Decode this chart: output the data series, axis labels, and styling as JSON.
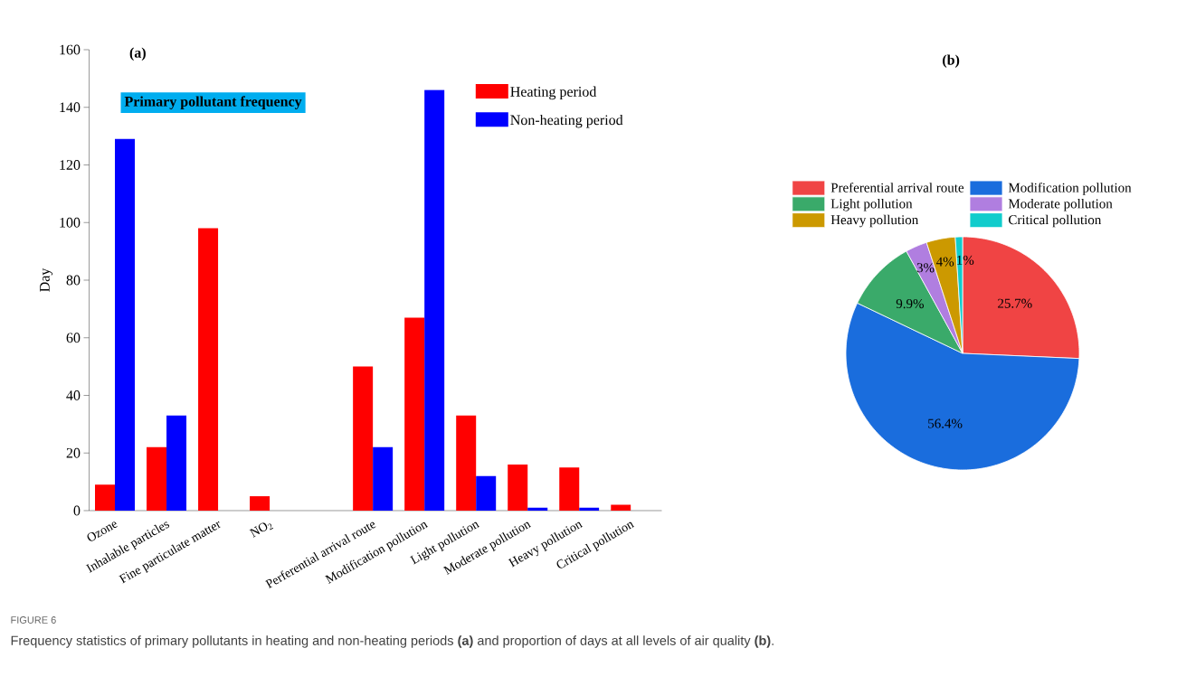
{
  "chart_data": [
    {
      "type": "bar",
      "title": "(a)",
      "ylabel": "Day",
      "categories": [
        "Ozone",
        "Inhalable particles",
        "Fine particulate matter",
        "NO$_{2}$",
        null,
        "Perferential arrival route",
        "Modification pollution",
        "Light pollution",
        "Moderate pollution",
        "Heavy pollution",
        "Critical pollution"
      ],
      "series": [
        {
          "name": "Heating period",
          "color": "#ff0000",
          "values": [
            9,
            22,
            98,
            5,
            null,
            50,
            67,
            33,
            16,
            15,
            2
          ]
        },
        {
          "name": "Non-heating period",
          "color": "#0000ff",
          "values": [
            129,
            33,
            null,
            null,
            null,
            22,
            146,
            12,
            1,
            1,
            null
          ]
        }
      ],
      "ylim": [
        0,
        160
      ],
      "yticks": [
        0,
        20,
        40,
        60,
        80,
        100,
        120,
        140,
        160
      ],
      "legend": "top right",
      "grid": false,
      "annotations": [
        "Primary pollutant frequency",
        "FIGURE 6",
        "Frequency statistics of primary pollutants in heating and non-heating periods **(a)** and proportion of days at all levels of air quality **(b)**."
      ]
    },
    {
      "type": "pie",
      "title": "(b)",
      "categories": [
        "Preferential arrival route",
        "Modification  pollution",
        "Light pollution",
        "Moderate pollution",
        "Heavy pollution",
        "Critical pollution"
      ],
      "values": [
        25.7,
        56.4,
        9.9,
        3,
        4,
        1
      ],
      "colors": [
        "#f04444",
        "#1a6ddd",
        "#3aaa6a",
        "#b07ee0",
        "#cc9900",
        "#11cccc"
      ],
      "value_labels": [
        "25.7%",
        "56.4%",
        "9.9%",
        "3%",
        "4%",
        "1%"
      ],
      "legend": "top"
    }
  ]
}
